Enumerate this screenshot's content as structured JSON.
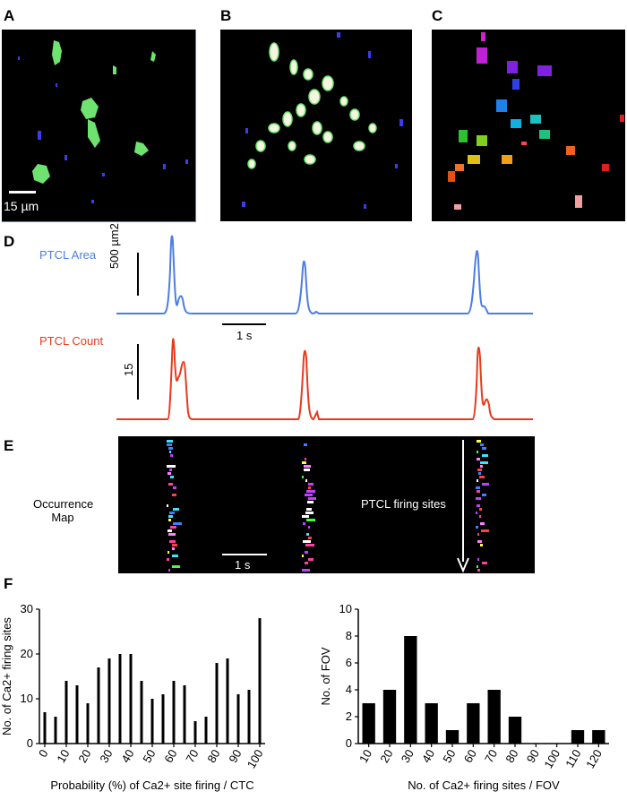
{
  "panels": {
    "a": "A",
    "b": "B",
    "c": "C",
    "d": "D",
    "e": "E",
    "f": "F"
  },
  "panel_a": {
    "scale_label": "15 µm"
  },
  "panel_d": {
    "area_label": "PTCL Area",
    "area_color": "#4a7fe0",
    "area_scale": "500 µm2",
    "time_scale": "1 s",
    "count_label": "PTCL Count",
    "count_color": "#e83a1c",
    "count_scale": "15"
  },
  "panel_e": {
    "map_label_line1": "Occurrence",
    "map_label_line2": "Map",
    "time_scale": "1 s",
    "arrow_label": "PTCL firing sites"
  },
  "chart_data": [
    {
      "type": "bar",
      "ylabel": "No. of Ca2+ firing sites",
      "xlabel": "Probability (%) of Ca2+ site firing / CTC",
      "x": [
        0,
        5,
        10,
        15,
        20,
        25,
        30,
        35,
        40,
        45,
        50,
        55,
        60,
        65,
        70,
        75,
        80,
        85,
        90,
        95,
        100
      ],
      "xticks": [
        "0",
        "10",
        "20",
        "30",
        "40",
        "50",
        "60",
        "70",
        "80",
        "90",
        "100"
      ],
      "values": [
        7,
        6,
        14,
        13,
        9,
        17,
        19,
        20,
        20,
        14,
        10,
        11,
        14,
        13,
        5,
        6,
        18,
        19,
        11,
        12,
        28
      ],
      "ylim": [
        0,
        30
      ],
      "yticks": [
        0,
        10,
        20,
        30
      ]
    },
    {
      "type": "bar",
      "ylabel": "No. of FOV",
      "xlabel": "No. of Ca2+ firing sites / FOV",
      "categories": [
        "10",
        "20",
        "30",
        "40",
        "50",
        "60",
        "70",
        "80",
        "90",
        "100",
        "110",
        "120"
      ],
      "values": [
        3,
        4,
        8,
        3,
        1,
        3,
        4,
        2,
        0,
        0,
        1,
        1
      ],
      "ylim": [
        0,
        10
      ],
      "yticks": [
        0,
        2,
        4,
        6,
        8,
        10
      ]
    }
  ]
}
